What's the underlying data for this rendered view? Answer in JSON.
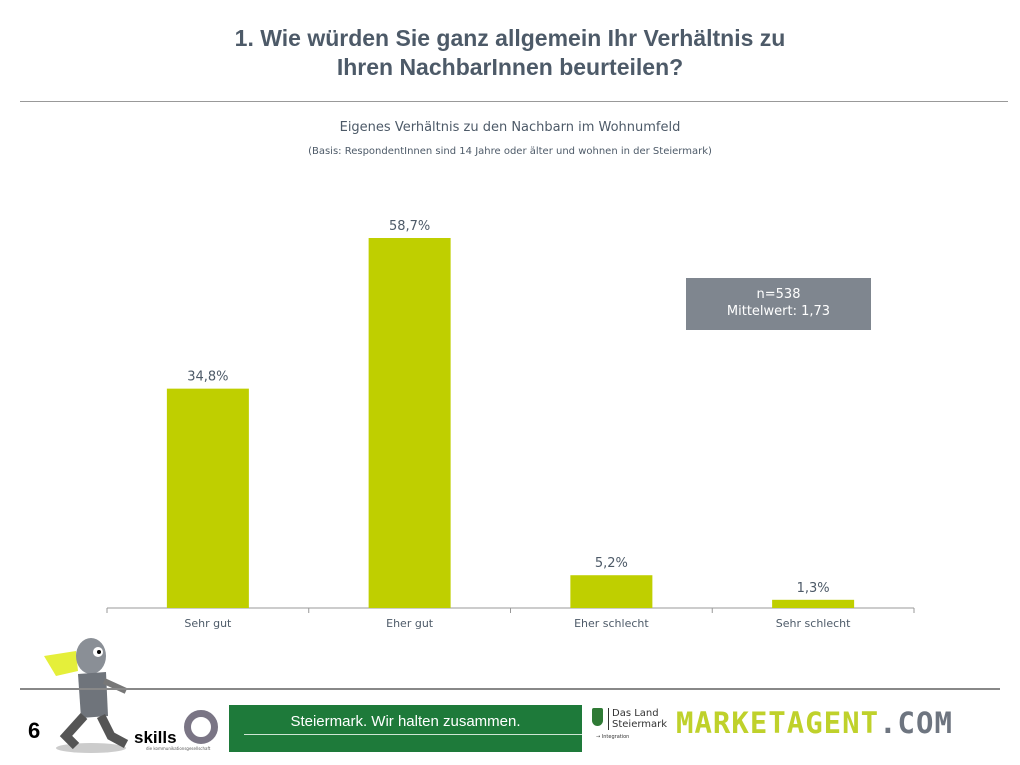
{
  "header": {
    "title_line1": "1. Wie würden Sie ganz allgemein Ihr Verhältnis zu",
    "title_line2": "Ihren NachbarInnen beurteilen?"
  },
  "chart_data": {
    "type": "bar",
    "title": "Eigenes Verhältnis zu den Nachbarn im Wohnumfeld",
    "subtitle": "(Basis: RespondentInnen sind 14 Jahre oder älter und wohnen in der Steiermark)",
    "categories": [
      "Sehr gut",
      "Eher gut",
      "Eher schlecht",
      "Sehr schlecht"
    ],
    "values": [
      34.8,
      58.7,
      5.2,
      1.3
    ],
    "labels": [
      "34,8%",
      "58,7%",
      "5,2%",
      "1,3%"
    ],
    "ylim": [
      0,
      60
    ],
    "xlabel": "",
    "ylabel": "",
    "bar_color": "#bfcf00",
    "annotation": {
      "n": "n=538",
      "mean": "Mittelwert: 1,73"
    }
  },
  "footer": {
    "page": "6",
    "skills": "skills",
    "skills_sub": "die kommunikationsgesellschaft",
    "banner": "Steiermark. Wir halten zusammen.",
    "land_line1": "Das Land",
    "land_line2": "Steiermark",
    "integration": "→ Integration",
    "brand_part1": "MARKETAGENT",
    "brand_part2": ".COM"
  }
}
